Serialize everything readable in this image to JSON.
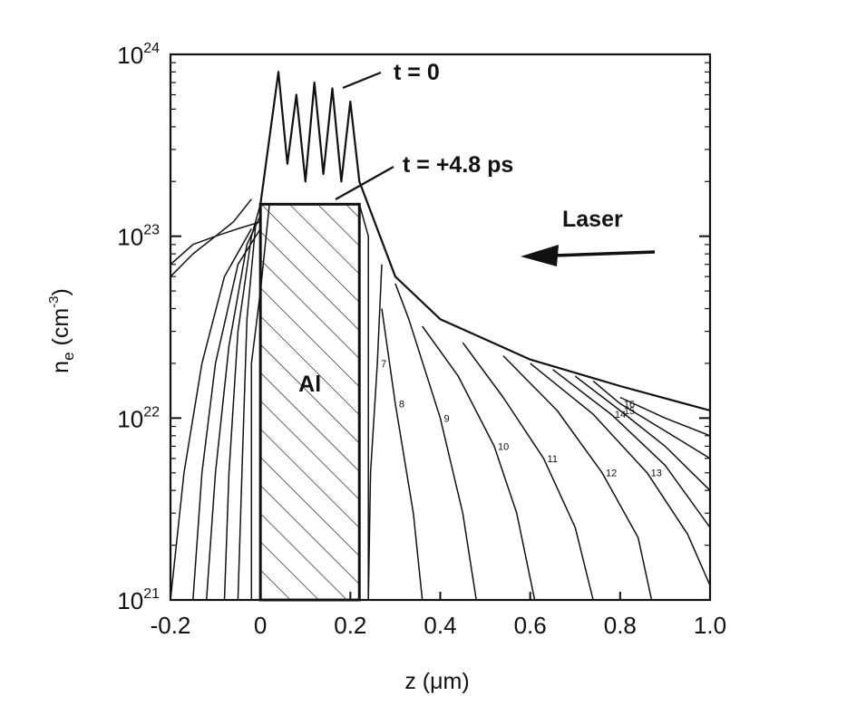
{
  "chart_data": {
    "type": "line",
    "xlabel": "z (μm)",
    "ylabel_main": "n",
    "ylabel_sub": "e",
    "ylabel_unit": " (cm",
    "ylabel_exp": "-3",
    "ylabel_close": ")",
    "x_scale": "linear",
    "y_scale": "log",
    "xlim": [
      -0.2,
      1.0
    ],
    "ylim": [
      1e+21,
      1e+24
    ],
    "x_ticks": [
      {
        "value": -0.2,
        "label": "-0.2"
      },
      {
        "value": 0,
        "label": "0"
      },
      {
        "value": 0.2,
        "label": "0.2"
      },
      {
        "value": 0.4,
        "label": "0.4"
      },
      {
        "value": 0.6,
        "label": "0.6"
      },
      {
        "value": 0.8,
        "label": "0.8"
      },
      {
        "value": 1.0,
        "label": "1.0"
      }
    ],
    "y_ticks": [
      {
        "value": 1e+21,
        "base": "10",
        "exp": "21"
      },
      {
        "value": 1e+22,
        "base": "10",
        "exp": "22"
      },
      {
        "value": 1e+23,
        "base": "10",
        "exp": "23"
      },
      {
        "value": 1e+24,
        "base": "10",
        "exp": "24"
      }
    ],
    "grid": false,
    "target": {
      "label": "Al",
      "z_start": 0.0,
      "z_end": 0.22,
      "density": 1.5e+23
    },
    "annotations": {
      "t0": "t = 0",
      "t48": "t = +4.8 ps",
      "laser": "Laser"
    },
    "series": [
      {
        "label": "",
        "points": [
          [
            -0.02,
            1e+21
          ],
          [
            -0.02,
            2e+22
          ],
          [
            0.0,
            5e+22
          ],
          [
            0.02,
            1.5e+23
          ],
          [
            0.22,
            1.5e+23
          ],
          [
            0.24,
            1e+23
          ],
          [
            0.24,
            1e+21
          ]
        ]
      },
      {
        "label": "",
        "points": [
          [
            0.0,
            1.5e+23
          ],
          [
            0.04,
            8e+23
          ],
          [
            0.06,
            2.5e+23
          ],
          [
            0.08,
            6e+23
          ],
          [
            0.1,
            2e+23
          ],
          [
            0.12,
            7e+23
          ],
          [
            0.14,
            2.2e+23
          ],
          [
            0.16,
            6.5e+23
          ],
          [
            0.18,
            2e+23
          ],
          [
            0.2,
            5.5e+23
          ],
          [
            0.22,
            2e+23
          ],
          [
            0.3,
            6e+22
          ],
          [
            0.4,
            3.5e+22
          ],
          [
            0.6,
            2.1e+22
          ],
          [
            0.8,
            1.5e+22
          ],
          [
            1.0,
            1.1e+22
          ]
        ]
      },
      {
        "label": "7",
        "points": [
          [
            0.24,
            1e+21
          ],
          [
            0.245,
            5e+21
          ],
          [
            0.26,
            2e+22
          ],
          [
            0.27,
            7e+22
          ]
        ]
      },
      {
        "label": "8",
        "points": [
          [
            0.36,
            1e+21
          ],
          [
            0.34,
            3e+21
          ],
          [
            0.3,
            1.2e+22
          ],
          [
            0.27,
            4e+22
          ]
        ]
      },
      {
        "label": "9",
        "points": [
          [
            0.48,
            1e+21
          ],
          [
            0.45,
            3e+21
          ],
          [
            0.4,
            1e+22
          ],
          [
            0.33,
            3.5e+22
          ],
          [
            0.3,
            5.5e+22
          ]
        ]
      },
      {
        "label": "10",
        "points": [
          [
            0.61,
            1e+21
          ],
          [
            0.57,
            3e+21
          ],
          [
            0.52,
            7e+21
          ],
          [
            0.44,
            1.7e+22
          ],
          [
            0.36,
            3.2e+22
          ]
        ]
      },
      {
        "label": "11",
        "points": [
          [
            0.74,
            1e+21
          ],
          [
            0.7,
            2.5e+21
          ],
          [
            0.63,
            6e+21
          ],
          [
            0.54,
            1.3e+22
          ],
          [
            0.45,
            2.6e+22
          ]
        ]
      },
      {
        "label": "12",
        "points": [
          [
            0.87,
            1e+21
          ],
          [
            0.84,
            2.2e+21
          ],
          [
            0.76,
            5e+21
          ],
          [
            0.66,
            1.1e+22
          ],
          [
            0.54,
            2.2e+22
          ]
        ]
      },
      {
        "label": "13",
        "points": [
          [
            1.0,
            1.2e+21
          ],
          [
            0.95,
            2.3e+21
          ],
          [
            0.86,
            5e+21
          ],
          [
            0.74,
            1.05e+22
          ],
          [
            0.6,
            2e+22
          ]
        ]
      },
      {
        "label": "14",
        "points": [
          [
            1.0,
            2.5e+21
          ],
          [
            0.9,
            5.5e+21
          ],
          [
            0.78,
            1.05e+22
          ],
          [
            0.65,
            1.85e+22
          ]
        ]
      },
      {
        "label": "15",
        "points": [
          [
            1.0,
            4e+21
          ],
          [
            0.9,
            7e+21
          ],
          [
            0.8,
            1.1e+22
          ],
          [
            0.7,
            1.7e+22
          ]
        ]
      },
      {
        "label": "16",
        "points": [
          [
            1.0,
            6e+21
          ],
          [
            0.9,
            8.5e+21
          ],
          [
            0.8,
            1.2e+22
          ],
          [
            0.74,
            1.6e+22
          ]
        ]
      },
      {
        "label": "",
        "points": [
          [
            1.0,
            8e+21
          ],
          [
            0.9,
            1e+22
          ],
          [
            0.8,
            1.3e+22
          ]
        ]
      },
      {
        "label": "",
        "points": [
          [
            -0.15,
            1e+21
          ],
          [
            -0.13,
            5e+21
          ],
          [
            -0.1,
            2e+22
          ],
          [
            -0.05,
            7e+22
          ],
          [
            0.0,
            1.1e+23
          ]
        ]
      },
      {
        "label": "",
        "points": [
          [
            -0.12,
            1e+21
          ],
          [
            -0.1,
            5e+21
          ],
          [
            -0.07,
            2.5e+22
          ],
          [
            -0.03,
            9e+22
          ],
          [
            0.0,
            1.3e+23
          ]
        ]
      },
      {
        "label": "",
        "points": [
          [
            -0.08,
            1e+21
          ],
          [
            -0.07,
            5e+21
          ],
          [
            -0.05,
            3e+22
          ],
          [
            -0.02,
            1e+23
          ],
          [
            0.0,
            1.5e+23
          ]
        ]
      },
      {
        "label": "",
        "points": [
          [
            -0.05,
            1e+21
          ],
          [
            -0.04,
            6e+21
          ],
          [
            -0.03,
            3.5e+22
          ],
          [
            -0.01,
            1.2e+23
          ]
        ]
      },
      {
        "label": "",
        "points": [
          [
            -0.2,
            7e+22
          ],
          [
            -0.15,
            9e+22
          ],
          [
            -0.1,
            1e+23
          ],
          [
            -0.05,
            1.1e+23
          ],
          [
            0.0,
            1.2e+23
          ]
        ]
      },
      {
        "label": "",
        "points": [
          [
            -0.2,
            6e+22
          ],
          [
            -0.15,
            8e+22
          ],
          [
            -0.1,
            1e+23
          ],
          [
            -0.06,
            1.2e+23
          ],
          [
            -0.02,
            1.6e+23
          ]
        ]
      },
      {
        "label": "",
        "points": [
          [
            -0.2,
            1e+21
          ],
          [
            -0.17,
            5e+21
          ],
          [
            -0.13,
            2e+22
          ],
          [
            -0.08,
            6e+22
          ],
          [
            -0.02,
            1.1e+23
          ]
        ]
      }
    ]
  }
}
